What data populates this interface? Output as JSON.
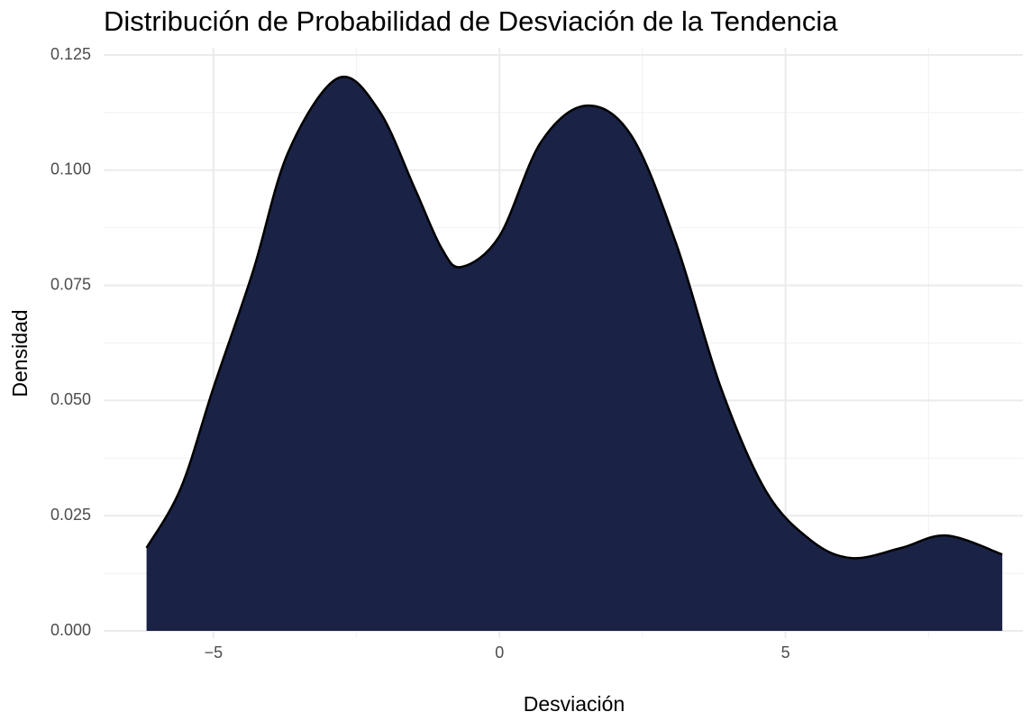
{
  "chart_data": {
    "type": "area",
    "title": "Distribución de Probabilidad de Desviación de la Tendencia",
    "xlabel": "Desviación",
    "ylabel": "Densidad",
    "x": [
      -6.17,
      -5.57,
      -5,
      -4.31,
      -3.69,
      -2.82,
      -2.11,
      -1.48,
      -1.01,
      -0.66,
      0,
      0.72,
      1.51,
      2.3,
      3.09,
      3.87,
      4.66,
      5.45,
      6.16,
      7.02,
      7.81,
      8.79
    ],
    "series": [
      {
        "name": "Densidad",
        "color": "#1a2346",
        "values": [
          0.018,
          0.031,
          0.0528,
          0.078,
          0.104,
          0.12,
          0.113,
          0.096,
          0.083,
          0.079,
          0.0857,
          0.106,
          0.114,
          0.1076,
          0.084,
          0.0528,
          0.0303,
          0.0196,
          0.0158,
          0.018,
          0.0207,
          0.0166
        ]
      }
    ],
    "xlim": [
      -6.92,
      9.15
    ],
    "ylim": [
      0,
      0.125
    ],
    "xticks": [
      {
        "value": -5,
        "label": "−5"
      },
      0,
      5
    ],
    "yticks": [
      {
        "value": 0,
        "label": "0.000"
      },
      {
        "value": 0.025,
        "label": "0.025"
      },
      {
        "value": 0.05,
        "label": "0.050"
      },
      {
        "value": 0.075,
        "label": "0.075"
      },
      {
        "value": 0.1,
        "label": "0.100"
      },
      {
        "value": 0.125,
        "label": "0.125"
      }
    ],
    "xminorticks": [
      -2.5,
      2.5,
      7.5
    ],
    "yminorticks": [
      0.0125,
      0.0375,
      0.0625,
      0.0875,
      0.1125
    ],
    "grid": true
  }
}
